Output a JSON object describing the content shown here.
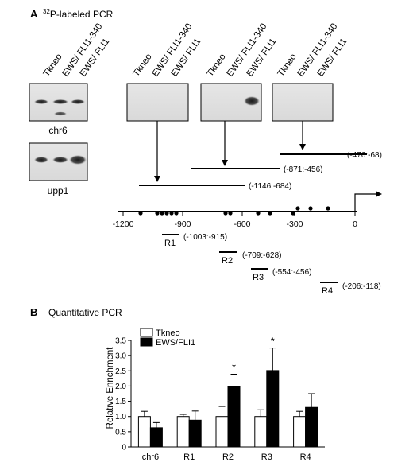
{
  "panel_a": {
    "label": "A",
    "title_sup": "32",
    "title_rest": "P-labeled PCR",
    "lane_labels": [
      "Tkneo",
      "EWS/ FLI1-340",
      "EWS/ FLI1"
    ],
    "gel_labels": [
      "chr6",
      "upp1"
    ],
    "axis_ticks": [
      "-1200",
      "-900",
      "-600",
      "-300",
      "0"
    ],
    "fragments": [
      "(-476:-68)",
      "(-871:-456)",
      "(-1146:-684)"
    ],
    "regions": [
      {
        "name": "R1",
        "coords": "(-1003:-915)"
      },
      {
        "name": "R2",
        "coords": "(-709:-628)"
      },
      {
        "name": "R3",
        "coords": "(-554:-456)"
      },
      {
        "name": "R4",
        "coords": "(-206:-118)"
      }
    ]
  },
  "panel_b": {
    "label": "B",
    "title": "Quantitative PCR",
    "legend": [
      "Tkneo",
      "EWS/FLI1"
    ],
    "colors": {
      "tkneo": "#ffffff",
      "ewsfli1": "#000000"
    }
  },
  "chart_data": {
    "type": "bar",
    "categories": [
      "chr6",
      "R1",
      "R2",
      "R3",
      "R4"
    ],
    "series": [
      {
        "name": "Tkneo",
        "values": [
          1.0,
          1.0,
          1.0,
          1.0,
          1.0
        ],
        "errors": [
          0.17,
          0.07,
          0.33,
          0.22,
          0.17
        ]
      },
      {
        "name": "EWS/FLI1",
        "values": [
          0.63,
          0.88,
          1.99,
          2.51,
          1.3
        ],
        "errors": [
          0.17,
          0.3,
          0.4,
          0.74,
          0.45
        ]
      }
    ],
    "significant": [
      "R2",
      "R3"
    ],
    "ylabel": "Relative Enrichment",
    "ylim": [
      0,
      3.5
    ],
    "yticks": [
      "0",
      "0.5",
      "1.0",
      "1.5",
      "2.0",
      "2.5",
      "3.0",
      "3.5"
    ],
    "grid": false,
    "legend_position": "top-left"
  }
}
